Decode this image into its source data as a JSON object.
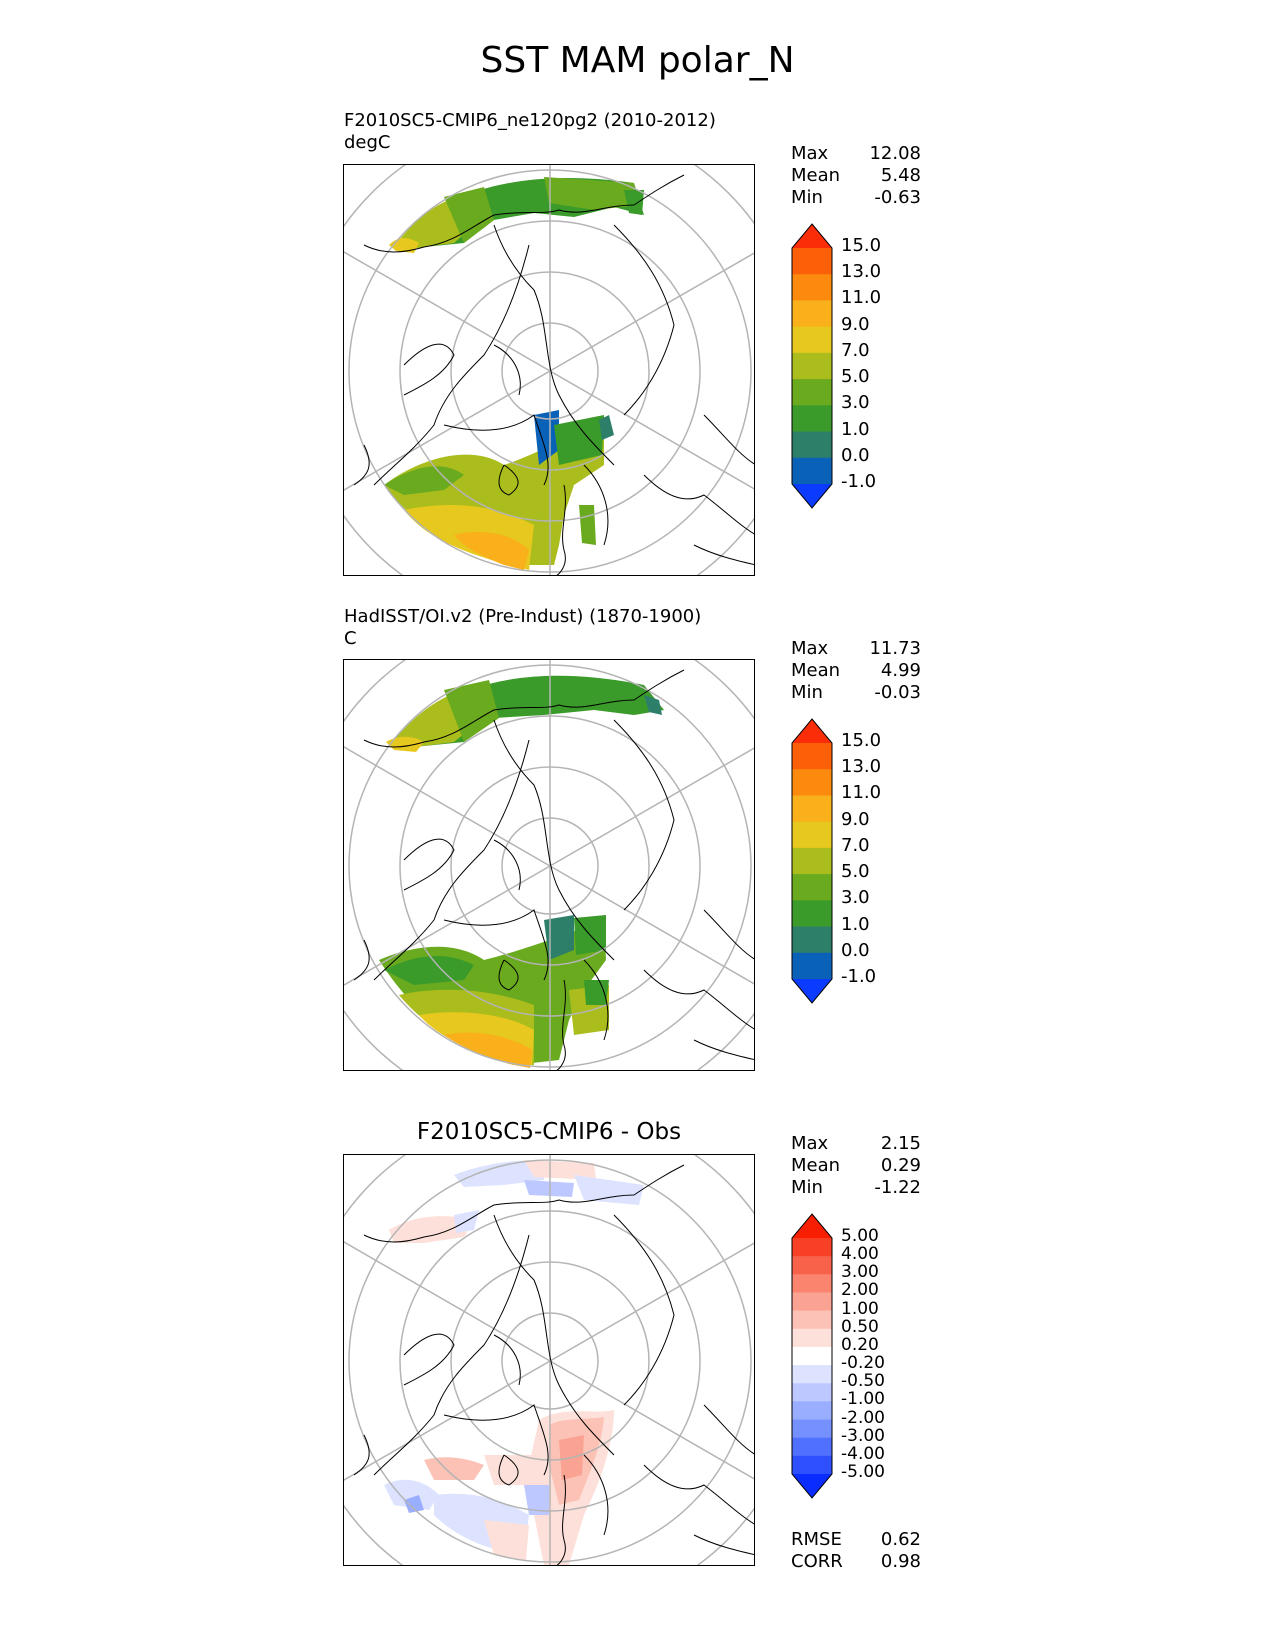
{
  "title": "SST MAM polar_N",
  "panels": [
    {
      "id": "test",
      "title_line1": "F2010SC5-CMIP6_ne120pg2 (2010-2012)",
      "title_line2": "degC",
      "stats": [
        {
          "label": "Max",
          "value": "12.08"
        },
        {
          "label": "Mean",
          "value": "5.48"
        },
        {
          "label": "Min",
          "value": "-0.63"
        }
      ]
    },
    {
      "id": "ref",
      "title_line1": "HadISST/OI.v2 (Pre-Indust) (1870-1900)",
      "title_line2": "C",
      "stats": [
        {
          "label": "Max",
          "value": "11.73"
        },
        {
          "label": "Mean",
          "value": "4.99"
        },
        {
          "label": "Min",
          "value": "-0.03"
        }
      ]
    },
    {
      "id": "diff",
      "title_center": "F2010SC5-CMIP6 - Obs",
      "stats": [
        {
          "label": "Max",
          "value": "2.15"
        },
        {
          "label": "Mean",
          "value": "0.29"
        },
        {
          "label": "Min",
          "value": "-1.22"
        }
      ],
      "extra_stats": [
        {
          "label": "RMSE",
          "value": "0.62"
        },
        {
          "label": "CORR",
          "value": "0.98"
        }
      ]
    }
  ],
  "chart_data": [
    {
      "type": "heatmap",
      "projection": "north-polar-stereographic",
      "title": "F2010SC5-CMIP6_ne120pg2 (2010-2012)",
      "units": "degC",
      "colorbar_levels": [
        "-1.0",
        "0.0",
        "1.0",
        "3.0",
        "5.0",
        "7.0",
        "9.0",
        "11.0",
        "13.0",
        "15.0"
      ],
      "colorbar_colors": [
        "#0b3bff",
        "#0a62b8",
        "#2e7f6a",
        "#3a9a2a",
        "#6aaa1e",
        "#aabd1c",
        "#e6c81e",
        "#fab01a",
        "#fb8a0e",
        "#fb6008",
        "#fb2c08"
      ],
      "max": 12.08,
      "mean": 5.48,
      "min": -0.63
    },
    {
      "type": "heatmap",
      "projection": "north-polar-stereographic",
      "title": "HadISST/OI.v2 (Pre-Indust) (1870-1900)",
      "units": "C",
      "colorbar_levels": [
        "-1.0",
        "0.0",
        "1.0",
        "3.0",
        "5.0",
        "7.0",
        "9.0",
        "11.0",
        "13.0",
        "15.0"
      ],
      "colorbar_colors": [
        "#0b3bff",
        "#0a62b8",
        "#2e7f6a",
        "#3a9a2a",
        "#6aaa1e",
        "#aabd1c",
        "#e6c81e",
        "#fab01a",
        "#fb8a0e",
        "#fb6008",
        "#fb2c08"
      ],
      "max": 11.73,
      "mean": 4.99,
      "min": -0.03
    },
    {
      "type": "heatmap",
      "projection": "north-polar-stereographic",
      "title": "F2010SC5-CMIP6 - Obs",
      "colorbar_levels": [
        "-5.00",
        "-4.00",
        "-3.00",
        "-2.00",
        "-1.00",
        "-0.50",
        "-0.20",
        "0.20",
        "0.50",
        "1.00",
        "2.00",
        "3.00",
        "4.00",
        "5.00"
      ],
      "colorbar_colors": [
        "#0b2cff",
        "#2e50ff",
        "#5070ff",
        "#7590ff",
        "#9aaeff",
        "#bcc8ff",
        "#dde3ff",
        "#ffffff",
        "#fde0da",
        "#fcc2b6",
        "#fba392",
        "#fa846e",
        "#f9624a",
        "#f84026",
        "#f81e02"
      ],
      "max": 2.15,
      "mean": 0.29,
      "min": -1.22,
      "rmse": 0.62,
      "corr": 0.98
    }
  ]
}
